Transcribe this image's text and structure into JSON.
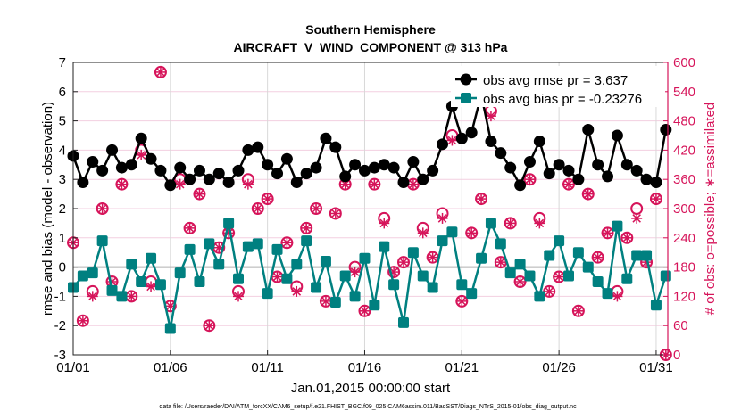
{
  "chart_data": {
    "type": "line",
    "title": "Southern Hemisphere",
    "subtitle": "AIRCRAFT_V_WIND_COMPONENT @ 313 hPa",
    "xlabel": "Jan.01,2015 00:00:00 start",
    "ylabel": "rmse and bias (model - observation)",
    "ylabel_right": "# of obs: o=possible; ∗=assimilated",
    "footer": "data file: /Users/raeder/DAI/ATM_forcXX/CAM6_setup/f.e21.FHIST_BGC.f09_025.CAM6assim.011/BadSST/Diags_NTrS_2015-01/obs_diag_output.nc",
    "x_tick_labels": [
      "01/01",
      "01/06",
      "01/11",
      "01/16",
      "01/21",
      "01/26",
      "01/31"
    ],
    "x_tick_days": [
      1,
      6,
      11,
      16,
      21,
      26,
      31
    ],
    "xlim_days": [
      1,
      31.6
    ],
    "ylim": [
      -3,
      7
    ],
    "y_ticks": [
      "-3",
      "-2",
      "-1",
      "0",
      "1",
      "2",
      "3",
      "4",
      "5",
      "6",
      "7"
    ],
    "ylim_right": [
      0,
      600
    ],
    "y_ticks_right": [
      "0",
      "60",
      "120",
      "180",
      "240",
      "300",
      "360",
      "420",
      "480",
      "540",
      "600"
    ],
    "grid": true,
    "legend_position": "top-right",
    "x_dates_start": "01/01 00Z",
    "x_interval_hours": 12,
    "series": [
      {
        "name": "obs avg rmse pr = 3.637",
        "color": "#000000",
        "marker": "circle",
        "values": [
          3.8,
          2.9,
          3.6,
          3.3,
          4.0,
          3.4,
          3.5,
          4.4,
          3.7,
          3.3,
          2.8,
          3.4,
          3.0,
          3.3,
          3.0,
          3.2,
          2.9,
          3.3,
          4.0,
          4.1,
          3.5,
          3.2,
          3.7,
          2.9,
          3.2,
          3.4,
          4.4,
          4.1,
          3.1,
          3.5,
          3.3,
          3.4,
          3.5,
          3.4,
          2.9,
          3.6,
          3.0,
          3.3,
          4.2,
          5.5,
          4.4,
          4.6,
          5.9,
          4.3,
          3.9,
          3.4,
          2.8,
          3.6,
          4.3,
          3.2,
          3.5,
          3.3,
          3.0,
          4.7,
          3.5,
          3.1,
          4.5,
          3.5,
          3.3,
          3.0,
          2.9,
          4.7
        ]
      },
      {
        "name": "obs avg bias pr = -0.23276",
        "color": "#008080",
        "marker": "square",
        "values": [
          -0.7,
          -0.3,
          -0.2,
          0.9,
          -0.8,
          -1.0,
          0.1,
          -0.5,
          0.3,
          -0.6,
          -2.1,
          -0.2,
          0.6,
          -0.5,
          0.8,
          0.1,
          1.5,
          -0.4,
          0.7,
          0.8,
          -0.9,
          0.6,
          -0.4,
          0.1,
          0.9,
          -0.7,
          0.2,
          -1.2,
          -0.3,
          -1.0,
          0.3,
          -1.3,
          0.7,
          -0.6,
          -1.9,
          0.5,
          -0.3,
          -0.7,
          0.9,
          1.2,
          -0.6,
          -0.9,
          0.3,
          1.5,
          0.8,
          -0.2,
          0.1,
          -0.3,
          -1.0,
          0.4,
          0.9,
          -0.3,
          0.5,
          0.0,
          -0.5,
          -0.9,
          1.4,
          -0.4,
          0.4,
          0.4,
          -1.3,
          -0.3
        ]
      },
      {
        "axis": "right",
        "color": "#d6145a",
        "marker": "open-circle",
        "values": [
          230,
          70,
          130,
          300,
          150,
          350,
          120,
          420,
          150,
          580,
          100,
          360,
          260,
          330,
          60,
          220,
          250,
          130,
          360,
          300,
          320,
          160,
          230,
          140,
          260,
          300,
          110,
          290,
          350,
          180,
          90,
          350,
          280,
          170,
          190,
          350,
          260,
          200,
          290,
          450,
          110,
          250,
          320,
          500,
          190,
          270,
          150,
          360,
          280,
          130,
          160,
          350,
          90,
          330,
          200,
          250,
          130,
          240,
          300,
          190,
          320,
          0
        ]
      },
      {
        "axis": "right",
        "color": "#d6145a",
        "marker": "asterisk",
        "values": [
          230,
          70,
          120,
          300,
          150,
          350,
          120,
          410,
          140,
          580,
          100,
          350,
          260,
          330,
          60,
          220,
          250,
          120,
          350,
          300,
          320,
          160,
          230,
          130,
          260,
          300,
          110,
          290,
          350,
          170,
          90,
          350,
          270,
          170,
          190,
          350,
          250,
          200,
          280,
          440,
          110,
          250,
          320,
          490,
          190,
          270,
          150,
          360,
          270,
          130,
          160,
          350,
          90,
          330,
          200,
          250,
          120,
          240,
          280,
          190,
          320,
          0
        ]
      }
    ]
  }
}
